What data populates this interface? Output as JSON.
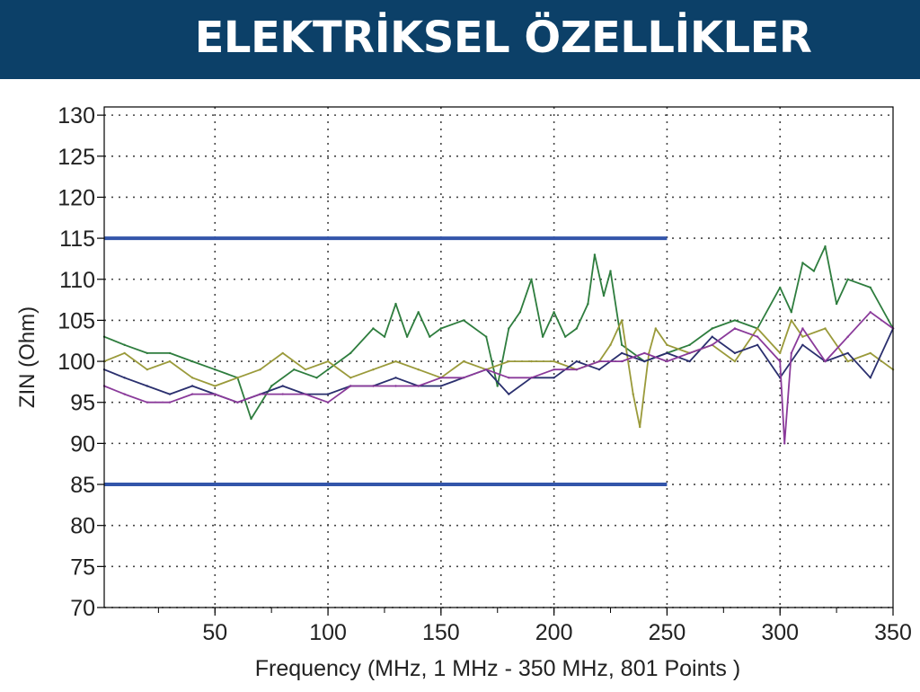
{
  "header": {
    "title": "ELEKTRİKSEL ÖZELLİKLER",
    "bg_color": "#0c4068"
  },
  "chart_data": {
    "type": "line",
    "xlabel": "Frequency (MHz, 1 MHz - 350 MHz, 801 Points )",
    "ylabel": "ZIN (Ohm)",
    "xlim": [
      1,
      350
    ],
    "ylim": [
      70,
      131
    ],
    "x_ticks": [
      50,
      100,
      150,
      200,
      250,
      300,
      350
    ],
    "y_ticks": [
      70,
      75,
      80,
      85,
      90,
      95,
      100,
      105,
      110,
      115,
      120,
      125,
      130
    ],
    "grid": true,
    "limits": [
      {
        "x": [
          1,
          250
        ],
        "y": 115,
        "color": "#3355aa"
      },
      {
        "x": [
          1,
          250
        ],
        "y": 85,
        "color": "#3355aa"
      }
    ],
    "series": [
      {
        "color": "#2e7d3e",
        "x": [
          1,
          10,
          20,
          30,
          40,
          50,
          60,
          66,
          75,
          85,
          95,
          100,
          110,
          120,
          125,
          130,
          135,
          140,
          145,
          150,
          160,
          170,
          175,
          180,
          185,
          190,
          195,
          200,
          205,
          210,
          215,
          218,
          222,
          225,
          230,
          240,
          250,
          260,
          270,
          280,
          290,
          300,
          305,
          310,
          315,
          320,
          325,
          330,
          340,
          350
        ],
        "y": [
          103,
          102,
          101,
          101,
          100,
          99,
          98,
          93,
          97,
          99,
          98,
          99,
          101,
          104,
          103,
          107,
          103,
          106,
          103,
          104,
          105,
          103,
          97,
          104,
          106,
          110,
          103,
          106,
          103,
          104,
          107,
          113,
          108,
          111,
          102,
          100,
          101,
          102,
          104,
          105,
          104,
          109,
          106,
          112,
          111,
          114,
          107,
          110,
          109,
          104
        ]
      },
      {
        "color": "#9a9a3a",
        "x": [
          1,
          10,
          20,
          30,
          40,
          50,
          60,
          70,
          80,
          90,
          100,
          110,
          120,
          130,
          140,
          150,
          160,
          170,
          180,
          190,
          200,
          210,
          220,
          225,
          230,
          235,
          238,
          242,
          245,
          250,
          260,
          270,
          280,
          290,
          300,
          305,
          310,
          320,
          330,
          340,
          350
        ],
        "y": [
          100,
          101,
          99,
          100,
          98,
          97,
          98,
          99,
          101,
          99,
          100,
          98,
          99,
          100,
          99,
          98,
          100,
          99,
          100,
          100,
          100,
          99,
          100,
          102,
          105,
          96,
          92,
          101,
          104,
          102,
          101,
          102,
          100,
          104,
          101,
          105,
          103,
          104,
          100,
          101,
          99
        ]
      },
      {
        "color": "#2a2f6e",
        "x": [
          1,
          10,
          20,
          30,
          40,
          50,
          60,
          70,
          80,
          90,
          100,
          110,
          120,
          130,
          140,
          150,
          160,
          170,
          180,
          190,
          200,
          210,
          220,
          230,
          240,
          250,
          260,
          270,
          280,
          290,
          300,
          310,
          320,
          330,
          340,
          350
        ],
        "y": [
          99,
          98,
          97,
          96,
          97,
          96,
          95,
          96,
          97,
          96,
          96,
          97,
          97,
          98,
          97,
          97,
          98,
          99,
          96,
          98,
          98,
          100,
          99,
          101,
          100,
          101,
          100,
          103,
          101,
          102,
          98,
          102,
          100,
          101,
          98,
          104
        ]
      },
      {
        "color": "#8a3a9a",
        "x": [
          1,
          10,
          20,
          30,
          40,
          50,
          60,
          70,
          80,
          90,
          100,
          110,
          120,
          130,
          140,
          150,
          160,
          170,
          180,
          190,
          200,
          210,
          220,
          230,
          240,
          250,
          260,
          270,
          280,
          290,
          300,
          302,
          305,
          310,
          320,
          330,
          340,
          350
        ],
        "y": [
          97,
          96,
          95,
          95,
          96,
          96,
          95,
          96,
          96,
          96,
          95,
          97,
          97,
          97,
          97,
          98,
          98,
          99,
          98,
          98,
          99,
          99,
          100,
          100,
          101,
          100,
          101,
          102,
          104,
          103,
          100,
          90,
          101,
          104,
          100,
          103,
          106,
          104
        ]
      }
    ]
  }
}
